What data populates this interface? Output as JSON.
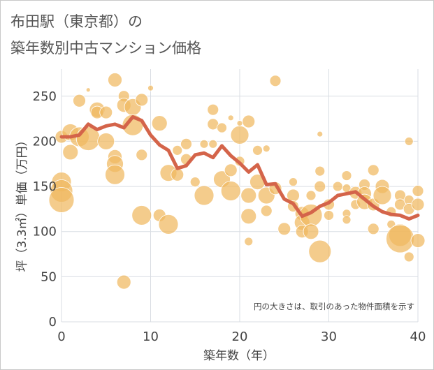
{
  "title_line1": "布田駅（東京都）の",
  "title_line2": "築年数別中古マンション価格",
  "chart_data": {
    "type": "scatter",
    "xlabel": "築年数（年）",
    "ylabel": "坪（3.3㎡）単価（万円）",
    "xlim": [
      0,
      40
    ],
    "ylim": [
      0,
      280
    ],
    "xticks": [
      0,
      10,
      20,
      30,
      40
    ],
    "yticks": [
      0,
      50,
      100,
      150,
      200,
      250
    ],
    "grid": true,
    "annotation": "円の大きさは、取引のあった物件面積を示す",
    "colors": {
      "bubble": "#f0b860",
      "line": "#d4644a",
      "grid": "#d9dde3",
      "plot_bg": "#ffffff"
    },
    "trend": {
      "x": [
        0,
        1,
        2,
        3,
        4,
        5,
        6,
        7,
        8,
        9,
        10,
        11,
        12,
        13,
        14,
        15,
        16,
        17,
        18,
        19,
        20,
        21,
        22,
        23,
        24,
        25,
        26,
        27,
        28,
        29,
        30,
        31,
        32,
        33,
        34,
        35,
        36,
        37,
        38,
        39,
        40
      ],
      "y": [
        205,
        205,
        207,
        219,
        213,
        217,
        219,
        215,
        227,
        223,
        207,
        196,
        190,
        170,
        173,
        185,
        187,
        182,
        195,
        184,
        176,
        166,
        174,
        152,
        153,
        136,
        131,
        117,
        121,
        128,
        132,
        140,
        142,
        144,
        136,
        128,
        122,
        119,
        118,
        114,
        118
      ]
    },
    "points": [
      {
        "x": 0,
        "y": 205,
        "s": 9
      },
      {
        "x": 0,
        "y": 155,
        "s": 14
      },
      {
        "x": 0,
        "y": 145,
        "s": 16
      },
      {
        "x": 0,
        "y": 135,
        "s": 18
      },
      {
        "x": 1,
        "y": 210,
        "s": 12
      },
      {
        "x": 1,
        "y": 188,
        "s": 11
      },
      {
        "x": 2,
        "y": 245,
        "s": 9
      },
      {
        "x": 2,
        "y": 205,
        "s": 14
      },
      {
        "x": 3,
        "y": 203,
        "s": 17
      },
      {
        "x": 3,
        "y": 257,
        "s": 3
      },
      {
        "x": 4,
        "y": 235,
        "s": 11
      },
      {
        "x": 4,
        "y": 232,
        "s": 9
      },
      {
        "x": 5,
        "y": 232,
        "s": 9
      },
      {
        "x": 5,
        "y": 200,
        "s": 12
      },
      {
        "x": 6,
        "y": 268,
        "s": 10
      },
      {
        "x": 6,
        "y": 183,
        "s": 10
      },
      {
        "x": 6,
        "y": 175,
        "s": 12
      },
      {
        "x": 6,
        "y": 163,
        "s": 14
      },
      {
        "x": 7,
        "y": 250,
        "s": 8
      },
      {
        "x": 7,
        "y": 240,
        "s": 10
      },
      {
        "x": 7,
        "y": 44,
        "s": 10
      },
      {
        "x": 8,
        "y": 238,
        "s": 12
      },
      {
        "x": 8,
        "y": 218,
        "s": 15
      },
      {
        "x": 9,
        "y": 246,
        "s": 9
      },
      {
        "x": 9,
        "y": 185,
        "s": 8
      },
      {
        "x": 9,
        "y": 118,
        "s": 14
      },
      {
        "x": 10,
        "y": 259,
        "s": 4
      },
      {
        "x": 11,
        "y": 220,
        "s": 11
      },
      {
        "x": 11,
        "y": 118,
        "s": 9
      },
      {
        "x": 12,
        "y": 165,
        "s": 12
      },
      {
        "x": 12,
        "y": 108,
        "s": 14
      },
      {
        "x": 13,
        "y": 163,
        "s": 9
      },
      {
        "x": 13,
        "y": 190,
        "s": 7
      },
      {
        "x": 14,
        "y": 197,
        "s": 8
      },
      {
        "x": 14,
        "y": 180,
        "s": 8
      },
      {
        "x": 15,
        "y": 155,
        "s": 7
      },
      {
        "x": 16,
        "y": 197,
        "s": 6
      },
      {
        "x": 16,
        "y": 140,
        "s": 14
      },
      {
        "x": 17,
        "y": 235,
        "s": 8
      },
      {
        "x": 17,
        "y": 219,
        "s": 8
      },
      {
        "x": 17,
        "y": 197,
        "s": 6
      },
      {
        "x": 18,
        "y": 215,
        "s": 7
      },
      {
        "x": 18,
        "y": 158,
        "s": 12
      },
      {
        "x": 19,
        "y": 226,
        "s": 4
      },
      {
        "x": 19,
        "y": 168,
        "s": 9
      },
      {
        "x": 19,
        "y": 145,
        "s": 14
      },
      {
        "x": 20,
        "y": 207,
        "s": 13
      },
      {
        "x": 20,
        "y": 220,
        "s": 4
      },
      {
        "x": 20,
        "y": 178,
        "s": 7
      },
      {
        "x": 21,
        "y": 222,
        "s": 9
      },
      {
        "x": 21,
        "y": 140,
        "s": 11
      },
      {
        "x": 21,
        "y": 117,
        "s": 11
      },
      {
        "x": 21,
        "y": 89,
        "s": 6
      },
      {
        "x": 22,
        "y": 190,
        "s": 7
      },
      {
        "x": 22,
        "y": 155,
        "s": 11
      },
      {
        "x": 23,
        "y": 192,
        "s": 5
      },
      {
        "x": 23,
        "y": 140,
        "s": 12
      },
      {
        "x": 23,
        "y": 123,
        "s": 8
      },
      {
        "x": 24,
        "y": 267,
        "s": 8
      },
      {
        "x": 24,
        "y": 148,
        "s": 9
      },
      {
        "x": 25,
        "y": 103,
        "s": 9
      },
      {
        "x": 26,
        "y": 155,
        "s": 6
      },
      {
        "x": 26,
        "y": 140,
        "s": 9
      },
      {
        "x": 26,
        "y": 128,
        "s": 8
      },
      {
        "x": 27,
        "y": 120,
        "s": 10
      },
      {
        "x": 27,
        "y": 110,
        "s": 11
      },
      {
        "x": 27,
        "y": 100,
        "s": 9
      },
      {
        "x": 28,
        "y": 140,
        "s": 7
      },
      {
        "x": 28,
        "y": 118,
        "s": 16
      },
      {
        "x": 28,
        "y": 100,
        "s": 11
      },
      {
        "x": 29,
        "y": 208,
        "s": 4
      },
      {
        "x": 29,
        "y": 167,
        "s": 7
      },
      {
        "x": 29,
        "y": 150,
        "s": 8
      },
      {
        "x": 29,
        "y": 78,
        "s": 16
      },
      {
        "x": 30,
        "y": 130,
        "s": 8
      },
      {
        "x": 30,
        "y": 118,
        "s": 7
      },
      {
        "x": 31,
        "y": 150,
        "s": 7
      },
      {
        "x": 32,
        "y": 162,
        "s": 7
      },
      {
        "x": 32,
        "y": 148,
        "s": 6
      },
      {
        "x": 32,
        "y": 120,
        "s": 6
      },
      {
        "x": 32,
        "y": 113,
        "s": 6
      },
      {
        "x": 33,
        "y": 143,
        "s": 9
      },
      {
        "x": 33,
        "y": 130,
        "s": 7
      },
      {
        "x": 34,
        "y": 152,
        "s": 8
      },
      {
        "x": 34,
        "y": 142,
        "s": 10
      },
      {
        "x": 34,
        "y": 133,
        "s": 11
      },
      {
        "x": 35,
        "y": 168,
        "s": 8
      },
      {
        "x": 35,
        "y": 130,
        "s": 9
      },
      {
        "x": 35,
        "y": 103,
        "s": 8
      },
      {
        "x": 36,
        "y": 150,
        "s": 10
      },
      {
        "x": 36,
        "y": 140,
        "s": 13
      },
      {
        "x": 37,
        "y": 122,
        "s": 7
      },
      {
        "x": 37,
        "y": 108,
        "s": 6
      },
      {
        "x": 38,
        "y": 140,
        "s": 8
      },
      {
        "x": 38,
        "y": 130,
        "s": 8
      },
      {
        "x": 38,
        "y": 96,
        "s": 16
      },
      {
        "x": 38,
        "y": 92,
        "s": 20
      },
      {
        "x": 39,
        "y": 200,
        "s": 6
      },
      {
        "x": 39,
        "y": 135,
        "s": 7
      },
      {
        "x": 39,
        "y": 125,
        "s": 8
      },
      {
        "x": 39,
        "y": 72,
        "s": 7
      },
      {
        "x": 40,
        "y": 145,
        "s": 8
      },
      {
        "x": 40,
        "y": 130,
        "s": 9
      },
      {
        "x": 40,
        "y": 90,
        "s": 10
      }
    ]
  }
}
